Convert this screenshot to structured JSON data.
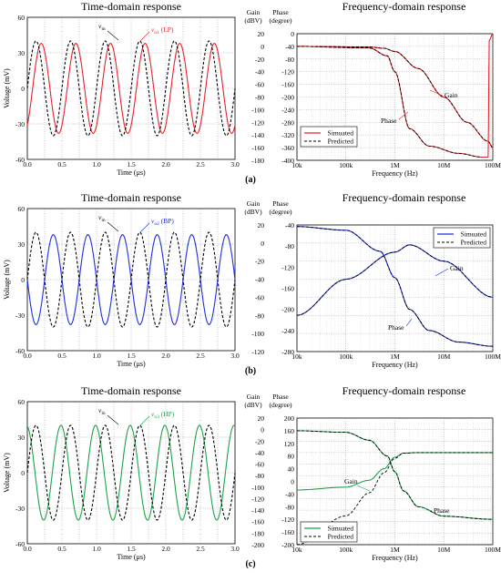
{
  "panels": [
    {
      "label": "(a)",
      "time": {
        "title": "Time-domain response",
        "xlabel": "Time (μs)",
        "ylabel": "Voltage (mV)",
        "xticks": [
          "0.0",
          "0.5",
          "1.0",
          "1.5",
          "2.0",
          "2.5",
          "3.0"
        ],
        "yticks": [
          "60",
          "30",
          "0",
          "-30",
          "-60"
        ],
        "vin_label": "v",
        "vin_sub": "in",
        "vout_label": "v",
        "vout_sub": "o1",
        "vout_suffix": " (LP)"
      },
      "freq": {
        "title": "Frequency-domain response",
        "gain_header": "Gain",
        "gain_unit": "(dBV)",
        "phase_header": "Phase",
        "phase_unit": "(degree)",
        "xlabel": "Frequency (Hz)",
        "xticks": [
          "10k",
          "100k",
          "1M",
          "10M",
          "100M"
        ],
        "gain_ticks": [
          "20",
          "0",
          "-20",
          "-40",
          "-60",
          "-80",
          "-100",
          "-120",
          "-140",
          "-160",
          "-180"
        ],
        "phase_ticks": [
          "0",
          "-40",
          "-80",
          "-120",
          "-160",
          "-200",
          "-240",
          "-280",
          "-320",
          "-360",
          "-400"
        ],
        "gain_note": "Gain",
        "phase_note": "Phase",
        "legend_sim": "Simuated",
        "legend_pred": "Predicted"
      }
    },
    {
      "label": "(b)",
      "time": {
        "title": "Time-domain response",
        "xlabel": "Time (μs)",
        "ylabel": "Voltage (mV)",
        "xticks": [
          "0.0",
          "0.5",
          "1.0",
          "1.5",
          "2.0",
          "2.5",
          "3.0"
        ],
        "yticks": [
          "60",
          "30",
          "0",
          "-30",
          "-60"
        ],
        "vin_label": "v",
        "vin_sub": "in",
        "vout_label": "v",
        "vout_sub": "o2",
        "vout_suffix": " (BP)"
      },
      "freq": {
        "title": "Frequency-domain response",
        "gain_header": "Gain",
        "gain_unit": "(dBV)",
        "phase_header": "Phase",
        "phase_unit": "(degree)",
        "xlabel": "Frequency (Hz)",
        "xticks": [
          "10k",
          "100k",
          "1M",
          "10M",
          "100M"
        ],
        "gain_ticks": [
          "20",
          "0",
          "-20",
          "-40",
          "-60",
          "-80",
          "-100",
          "-120"
        ],
        "phase_ticks": [
          "-40",
          "-80",
          "-120",
          "-160",
          "-200",
          "-240",
          "-280"
        ],
        "gain_note": "Gain",
        "phase_note": "Phase",
        "legend_sim": "Simuated",
        "legend_pred": "Predicted"
      }
    },
    {
      "label": "(c)",
      "time": {
        "title": "Time-domain response",
        "xlabel": "Time (μs)",
        "ylabel": "Voltage (mV)",
        "xticks": [
          "0.0",
          "0.5",
          "1.0",
          "1.5",
          "2.0",
          "2.5",
          "3.0"
        ],
        "yticks": [
          "60",
          "30",
          "0",
          "-30",
          "-60"
        ],
        "vin_label": "v",
        "vin_sub": "in",
        "vout_label": "v",
        "vout_sub": "o3",
        "vout_suffix": " (HP)"
      },
      "freq": {
        "title": "Frequency-domain response",
        "gain_header": "Gain",
        "gain_unit": "(dBV)",
        "phase_header": "Phase",
        "phase_unit": "(degree)",
        "xlabel": "Frequency (Hz)",
        "xticks": [
          "10k",
          "100k",
          "1M",
          "10M",
          "100M"
        ],
        "gain_ticks": [
          "20",
          "0",
          "-20",
          "-40",
          "-60",
          "-80",
          "-100",
          "-120",
          "-140",
          "-160",
          "-180",
          "-200"
        ],
        "phase_ticks": [
          "200",
          "160",
          "120",
          "80",
          "40",
          "0",
          "-40",
          "-80",
          "-120",
          "-160",
          "-200"
        ],
        "gain_note": "Gain",
        "phase_note": "Phase",
        "legend_sim": "Simuated",
        "legend_pred": "Predicted"
      }
    }
  ],
  "chart_data": [
    {
      "type": "line",
      "panel": "(a) time",
      "colors": {
        "vin": "#000000",
        "vout": "#e8212b"
      },
      "x_range": [
        0,
        3
      ],
      "ylim": [
        -60,
        60
      ],
      "series": [
        {
          "name": "vin",
          "amplitude_mV": 40,
          "period_us": 0.5,
          "phase_deg": 0
        },
        {
          "name": "vo1 (LP)",
          "amplitude_mV": 38,
          "period_us": 0.5,
          "phase_deg": -55
        }
      ]
    },
    {
      "type": "line",
      "panel": "(a) frequency",
      "xscale": "log",
      "x_range": [
        10000,
        100000000
      ],
      "gain_range": [
        -180,
        20
      ],
      "phase_range": [
        -400,
        0
      ],
      "gain_points": [
        [
          10000,
          0
        ],
        [
          300000,
          -1
        ],
        [
          600000,
          -3
        ],
        [
          1000000,
          -8
        ],
        [
          3000000,
          -35
        ],
        [
          10000000,
          -80
        ],
        [
          30000000,
          -120
        ],
        [
          80000000,
          -150
        ],
        [
          100000000,
          -160
        ]
      ],
      "phase_points": [
        [
          10000,
          -40
        ],
        [
          300000,
          -45
        ],
        [
          700000,
          -70
        ],
        [
          1000000,
          -120
        ],
        [
          2000000,
          -300
        ],
        [
          5000000,
          -355
        ],
        [
          20000000,
          -378
        ],
        [
          60000000,
          -390
        ],
        [
          80000000,
          -390
        ],
        [
          85000000,
          -20
        ],
        [
          100000000,
          0
        ]
      ]
    },
    {
      "type": "line",
      "panel": "(b) time",
      "colors": {
        "vin": "#000000",
        "vout": "#1d2fe0"
      },
      "x_range": [
        0,
        3
      ],
      "ylim": [
        -60,
        60
      ],
      "series": [
        {
          "name": "vin",
          "amplitude_mV": 40,
          "period_us": 0.5,
          "phase_deg": 0
        },
        {
          "name": "vo2 (BP)",
          "amplitude_mV": 38,
          "period_us": 0.5,
          "phase_deg": 180
        }
      ]
    },
    {
      "type": "line",
      "panel": "(b) frequency",
      "xscale": "log",
      "x_range": [
        10000,
        100000000
      ],
      "gain_range": [
        -120,
        20
      ],
      "phase_range": [
        -280,
        -40
      ],
      "gain_points": [
        [
          10000,
          -80
        ],
        [
          100000,
          -40
        ],
        [
          1000000,
          -10
        ],
        [
          2000000,
          -2
        ],
        [
          10000000,
          -20
        ],
        [
          100000000,
          -60
        ]
      ],
      "phase_points": [
        [
          10000,
          -43
        ],
        [
          100000,
          -50
        ],
        [
          500000,
          -90
        ],
        [
          1000000,
          -140
        ],
        [
          2000000,
          -200
        ],
        [
          5000000,
          -240
        ],
        [
          20000000,
          -262
        ],
        [
          100000000,
          -270
        ]
      ]
    },
    {
      "type": "line",
      "panel": "(c) time",
      "colors": {
        "vin": "#000000",
        "vout": "#1fa24a"
      },
      "x_range": [
        0,
        3
      ],
      "ylim": [
        -60,
        60
      ],
      "series": [
        {
          "name": "vin",
          "amplitude_mV": 40,
          "period_us": 0.5,
          "phase_deg": 0
        },
        {
          "name": "vo3 (HP)",
          "amplitude_mV": 40,
          "period_us": 0.5,
          "phase_deg": 100
        }
      ]
    },
    {
      "type": "line",
      "panel": "(c) frequency",
      "xscale": "log",
      "x_range": [
        10000,
        100000000
      ],
      "gain_range": [
        -200,
        20
      ],
      "phase_range": [
        -200,
        200
      ],
      "gain_sim_points": [
        [
          10000,
          -105
        ],
        [
          100000,
          -100
        ],
        [
          300000,
          -88
        ],
        [
          600000,
          -68
        ],
        [
          1000000,
          -48
        ],
        [
          1500000,
          -41
        ],
        [
          3000000,
          -40
        ],
        [
          100000000,
          -40
        ]
      ],
      "gain_pred_points": [
        [
          10000,
          -200
        ],
        [
          100000,
          -150
        ],
        [
          300000,
          -110
        ],
        [
          600000,
          -75
        ],
        [
          1000000,
          -50
        ],
        [
          1500000,
          -41
        ],
        [
          3000000,
          -40
        ],
        [
          100000000,
          -40
        ]
      ],
      "phase_points": [
        [
          10000,
          160
        ],
        [
          100000,
          155
        ],
        [
          300000,
          130
        ],
        [
          700000,
          80
        ],
        [
          1000000,
          30
        ],
        [
          1500000,
          -30
        ],
        [
          3000000,
          -80
        ],
        [
          10000000,
          -110
        ],
        [
          100000000,
          -120
        ]
      ]
    }
  ]
}
